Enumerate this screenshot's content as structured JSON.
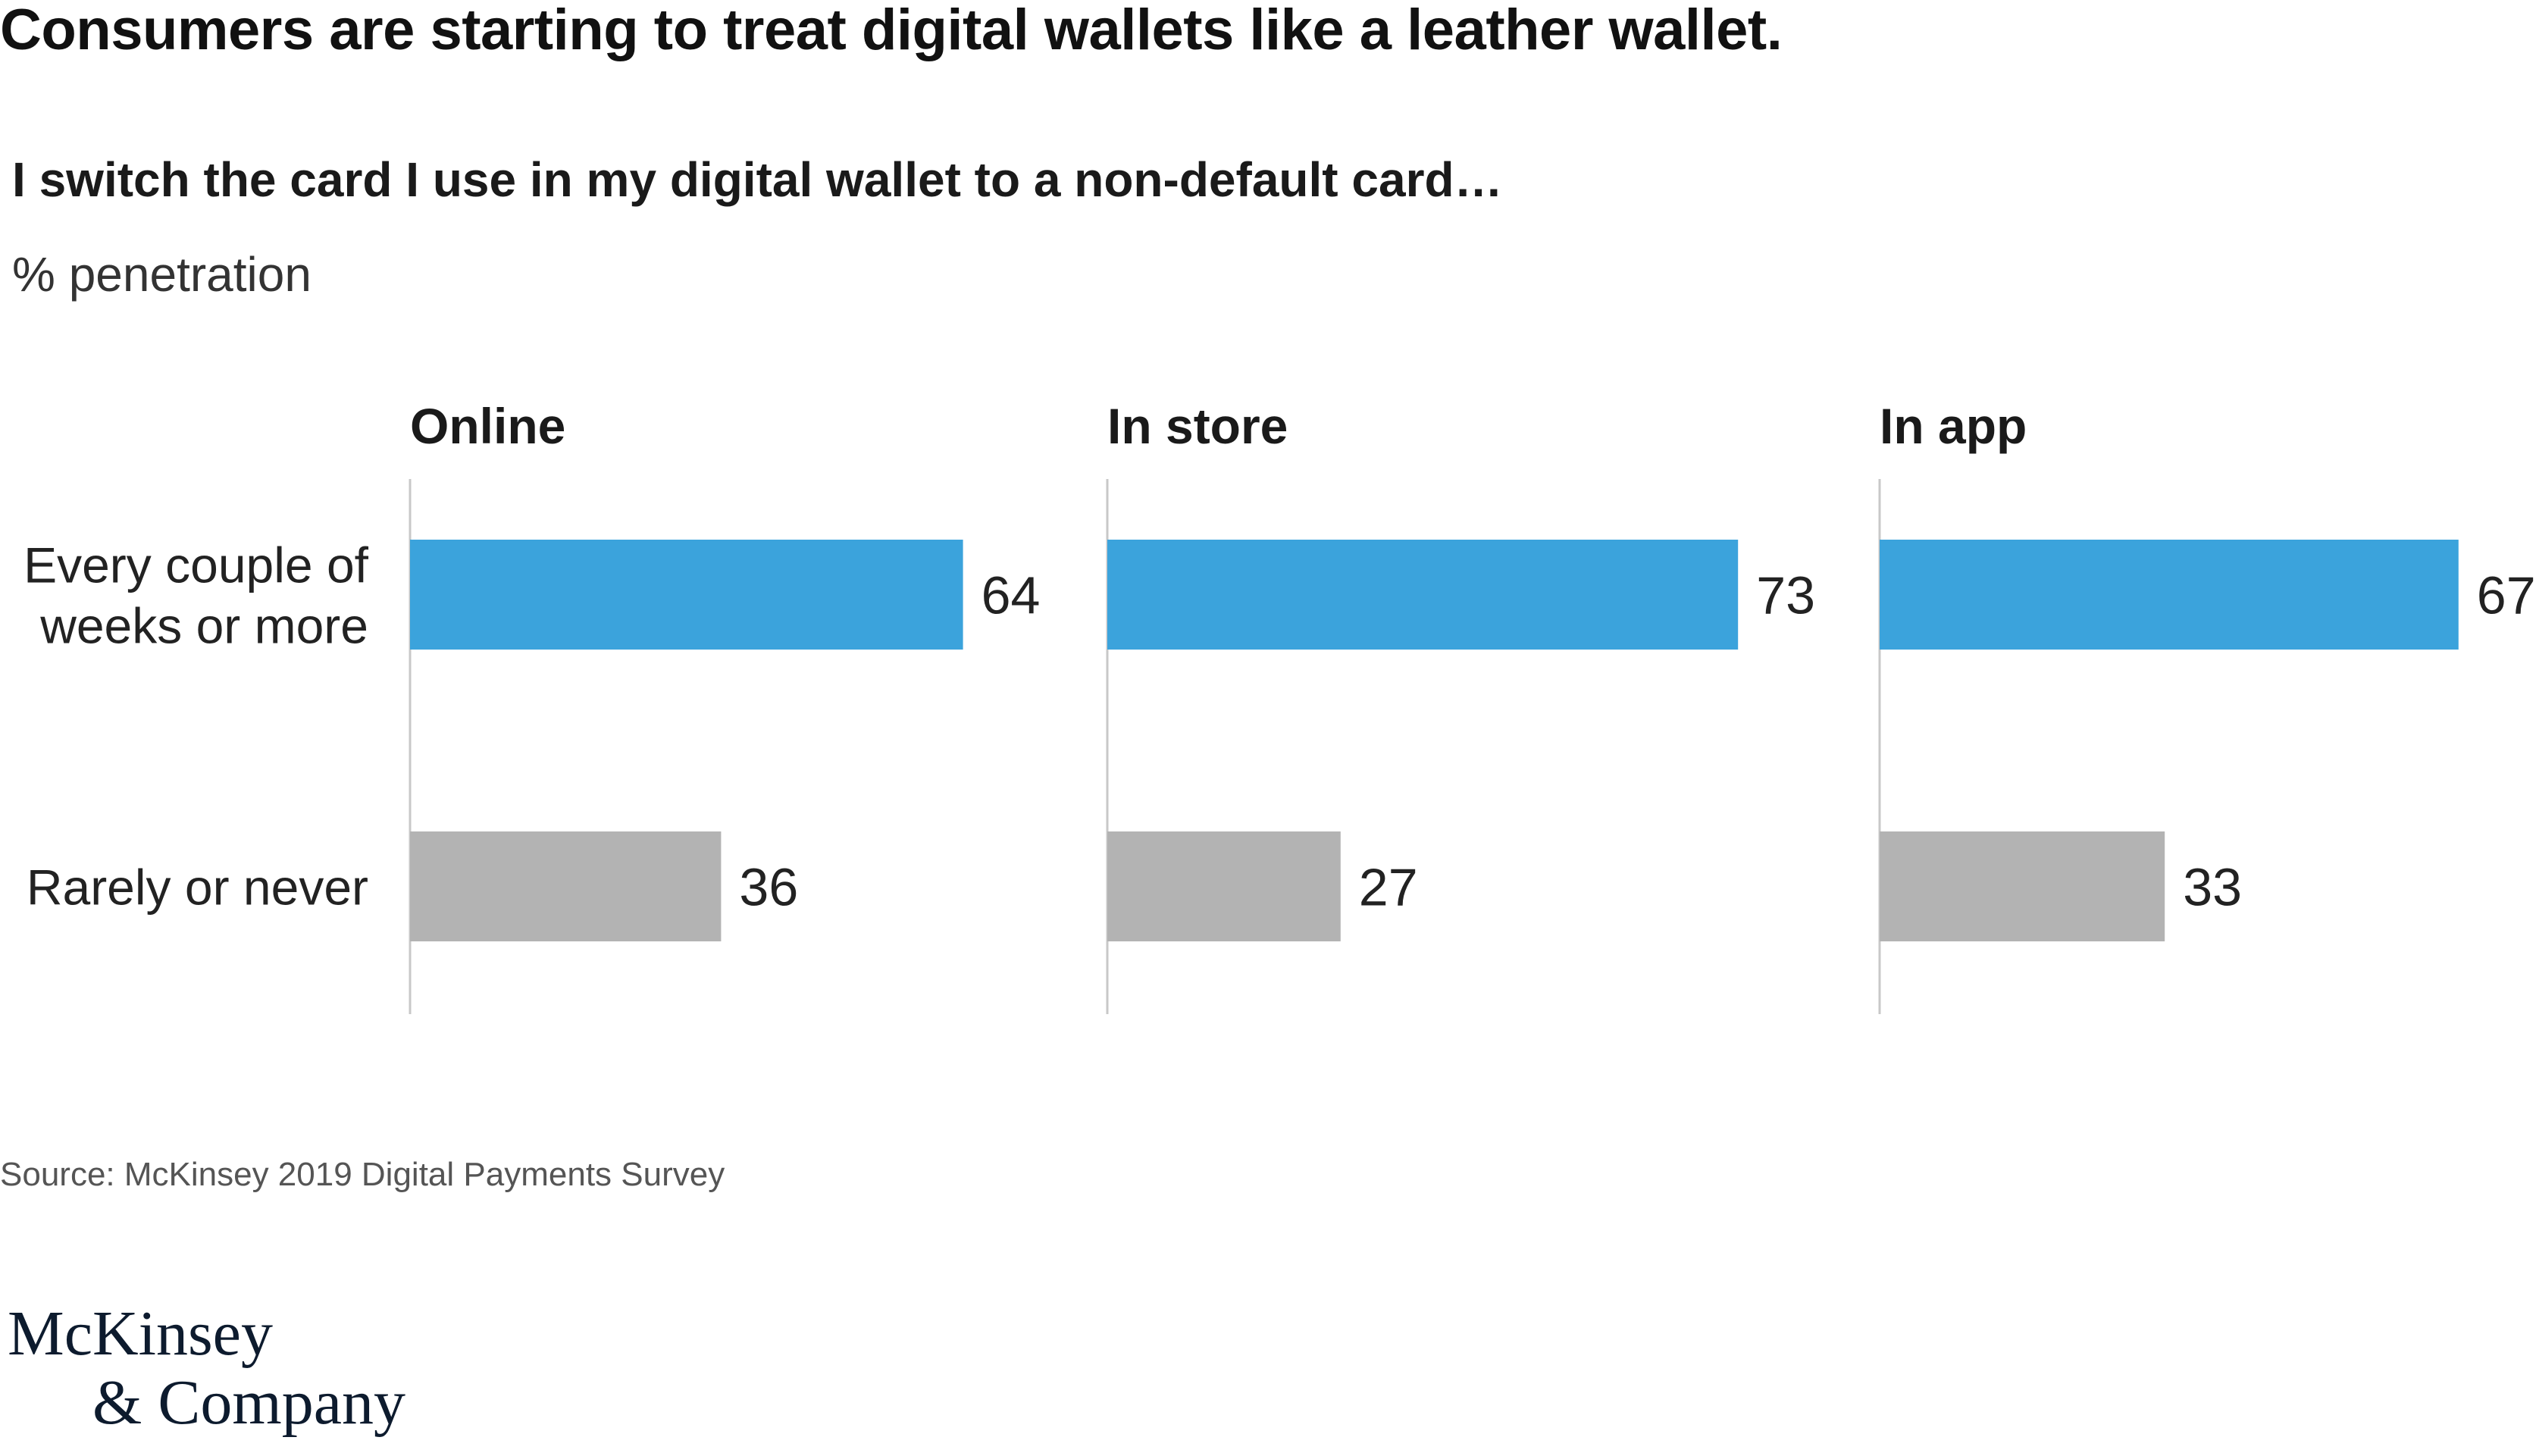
{
  "title": "Consumers are starting to treat digital wallets like a leather wallet.",
  "subtitle": "I switch the card I use in my digital wallet to a non-default card…",
  "unit_label": "% penetration",
  "source": "Source: McKinsey 2019 Digital Payments Survey",
  "logo": {
    "line1": "McKinsey",
    "line2": "& Company"
  },
  "colors": {
    "primary_bar": "#3ba3dc",
    "secondary_bar": "#b3b3b3",
    "axis": "#c8c8c8",
    "text": "#1a1a1a"
  },
  "chart_data": {
    "type": "bar",
    "orientation": "horizontal",
    "categories": [
      "Every couple of weeks or more",
      "Rarely or never"
    ],
    "category_labels": [
      [
        "Every couple of",
        "weeks or more"
      ],
      [
        "Rarely or never"
      ]
    ],
    "panels": [
      {
        "title": "Online",
        "values": [
          64,
          36
        ]
      },
      {
        "title": "In store",
        "values": [
          73,
          27
        ]
      },
      {
        "title": "In app",
        "values": [
          67,
          33
        ]
      }
    ],
    "xlim": [
      0,
      100
    ],
    "grid": false,
    "legend": "none",
    "title": "Consumers are starting to treat digital wallets like a leather wallet.",
    "subtitle": "I switch the card I use in my digital wallet to a non-default card…",
    "xlabel": "% penetration"
  }
}
